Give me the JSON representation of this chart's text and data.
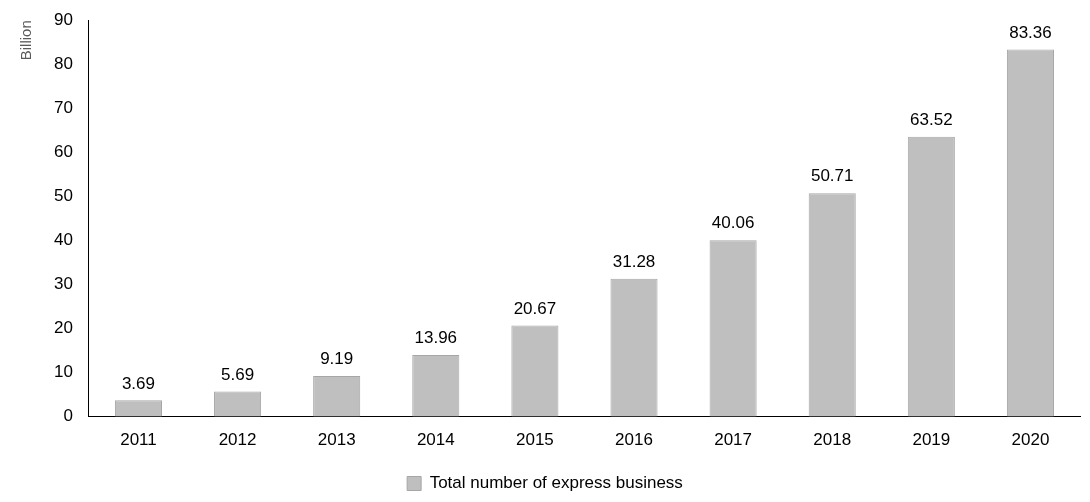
{
  "chart_data": {
    "type": "bar",
    "ylabel": "Billion",
    "categories": [
      "2011",
      "2012",
      "2013",
      "2014",
      "2015",
      "2016",
      "2017",
      "2018",
      "2019",
      "2020"
    ],
    "series": [
      {
        "name": "Total number of express business",
        "color": "#bfbfbf",
        "values": [
          3.69,
          5.69,
          9.19,
          13.96,
          20.67,
          31.28,
          40.06,
          50.71,
          63.52,
          83.36
        ]
      }
    ],
    "ylim": [
      0,
      90
    ],
    "yticks": [
      0,
      10,
      20,
      30,
      40,
      50,
      60,
      70,
      80,
      90
    ],
    "grid": false,
    "legend": "bottom",
    "data_labels": true
  }
}
